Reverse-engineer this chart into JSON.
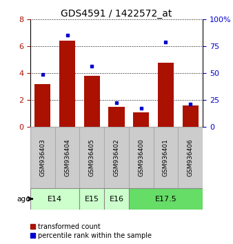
{
  "title": "GDS4591 / 1422572_at",
  "samples": [
    "GSM936403",
    "GSM936404",
    "GSM936405",
    "GSM936402",
    "GSM936400",
    "GSM936401",
    "GSM936406"
  ],
  "red_values": [
    3.2,
    6.4,
    3.8,
    1.5,
    1.1,
    4.8,
    1.6
  ],
  "blue_values": [
    3.9,
    6.85,
    4.5,
    1.8,
    1.4,
    6.3,
    1.7
  ],
  "ylim_left": [
    0,
    8
  ],
  "ylim_right": [
    0,
    100
  ],
  "yticks_left": [
    0,
    2,
    4,
    6,
    8
  ],
  "yticks_right": [
    0,
    25,
    50,
    75,
    100
  ],
  "ytick_labels_right": [
    "0",
    "25",
    "50",
    "75",
    "100%"
  ],
  "age_groups": [
    {
      "label": "E14",
      "start": 0,
      "end": 2,
      "color": "#ccffcc"
    },
    {
      "label": "E15",
      "start": 2,
      "end": 3,
      "color": "#ccffcc"
    },
    {
      "label": "E16",
      "start": 3,
      "end": 4,
      "color": "#ccffcc"
    },
    {
      "label": "E17.5",
      "start": 4,
      "end": 7,
      "color": "#66dd66"
    }
  ],
  "bar_color": "#aa1100",
  "marker_color": "#0000cc",
  "bg_color_sample": "#cccccc",
  "title_fontsize": 10,
  "tick_fontsize": 8,
  "legend_red": "transformed count",
  "legend_blue": "percentile rank within the sample",
  "age_label": "age"
}
